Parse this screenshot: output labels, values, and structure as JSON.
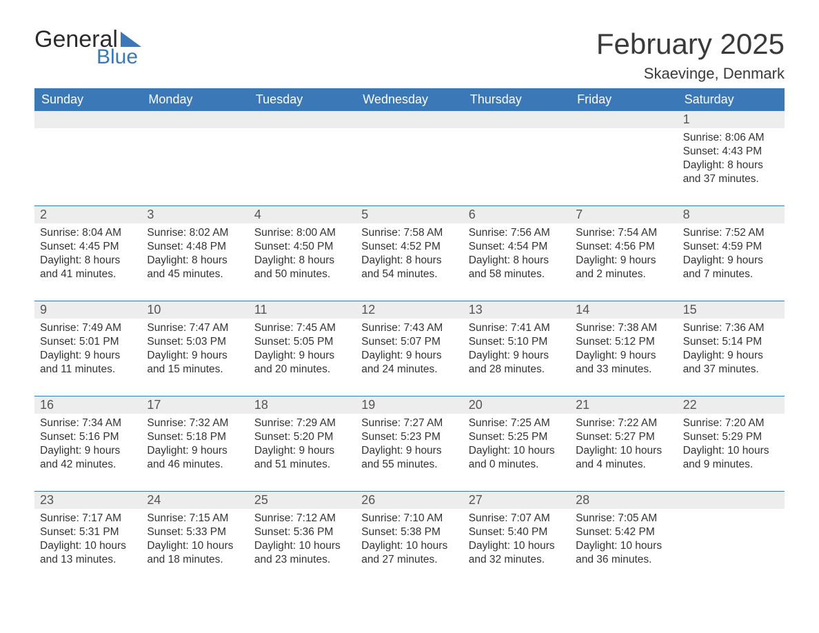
{
  "logo": {
    "text1": "General",
    "text2": "Blue",
    "brand_color": "#3a78b8"
  },
  "title": "February 2025",
  "location": "Skaevinge, Denmark",
  "colors": {
    "header_bg": "#3a78b8",
    "header_text": "#ffffff",
    "daynum_bg": "#ededed",
    "border": "#3a78b8",
    "body_text": "#333333",
    "background": "#ffffff"
  },
  "day_headers": [
    "Sunday",
    "Monday",
    "Tuesday",
    "Wednesday",
    "Thursday",
    "Friday",
    "Saturday"
  ],
  "layout": {
    "columns": 7,
    "rows": 5
  },
  "weeks": [
    [
      null,
      null,
      null,
      null,
      null,
      null,
      {
        "n": "1",
        "sr": "Sunrise: 8:06 AM",
        "ss": "Sunset: 4:43 PM",
        "d1": "Daylight: 8 hours",
        "d2": "and 37 minutes."
      }
    ],
    [
      {
        "n": "2",
        "sr": "Sunrise: 8:04 AM",
        "ss": "Sunset: 4:45 PM",
        "d1": "Daylight: 8 hours",
        "d2": "and 41 minutes."
      },
      {
        "n": "3",
        "sr": "Sunrise: 8:02 AM",
        "ss": "Sunset: 4:48 PM",
        "d1": "Daylight: 8 hours",
        "d2": "and 45 minutes."
      },
      {
        "n": "4",
        "sr": "Sunrise: 8:00 AM",
        "ss": "Sunset: 4:50 PM",
        "d1": "Daylight: 8 hours",
        "d2": "and 50 minutes."
      },
      {
        "n": "5",
        "sr": "Sunrise: 7:58 AM",
        "ss": "Sunset: 4:52 PM",
        "d1": "Daylight: 8 hours",
        "d2": "and 54 minutes."
      },
      {
        "n": "6",
        "sr": "Sunrise: 7:56 AM",
        "ss": "Sunset: 4:54 PM",
        "d1": "Daylight: 8 hours",
        "d2": "and 58 minutes."
      },
      {
        "n": "7",
        "sr": "Sunrise: 7:54 AM",
        "ss": "Sunset: 4:56 PM",
        "d1": "Daylight: 9 hours",
        "d2": "and 2 minutes."
      },
      {
        "n": "8",
        "sr": "Sunrise: 7:52 AM",
        "ss": "Sunset: 4:59 PM",
        "d1": "Daylight: 9 hours",
        "d2": "and 7 minutes."
      }
    ],
    [
      {
        "n": "9",
        "sr": "Sunrise: 7:49 AM",
        "ss": "Sunset: 5:01 PM",
        "d1": "Daylight: 9 hours",
        "d2": "and 11 minutes."
      },
      {
        "n": "10",
        "sr": "Sunrise: 7:47 AM",
        "ss": "Sunset: 5:03 PM",
        "d1": "Daylight: 9 hours",
        "d2": "and 15 minutes."
      },
      {
        "n": "11",
        "sr": "Sunrise: 7:45 AM",
        "ss": "Sunset: 5:05 PM",
        "d1": "Daylight: 9 hours",
        "d2": "and 20 minutes."
      },
      {
        "n": "12",
        "sr": "Sunrise: 7:43 AM",
        "ss": "Sunset: 5:07 PM",
        "d1": "Daylight: 9 hours",
        "d2": "and 24 minutes."
      },
      {
        "n": "13",
        "sr": "Sunrise: 7:41 AM",
        "ss": "Sunset: 5:10 PM",
        "d1": "Daylight: 9 hours",
        "d2": "and 28 minutes."
      },
      {
        "n": "14",
        "sr": "Sunrise: 7:38 AM",
        "ss": "Sunset: 5:12 PM",
        "d1": "Daylight: 9 hours",
        "d2": "and 33 minutes."
      },
      {
        "n": "15",
        "sr": "Sunrise: 7:36 AM",
        "ss": "Sunset: 5:14 PM",
        "d1": "Daylight: 9 hours",
        "d2": "and 37 minutes."
      }
    ],
    [
      {
        "n": "16",
        "sr": "Sunrise: 7:34 AM",
        "ss": "Sunset: 5:16 PM",
        "d1": "Daylight: 9 hours",
        "d2": "and 42 minutes."
      },
      {
        "n": "17",
        "sr": "Sunrise: 7:32 AM",
        "ss": "Sunset: 5:18 PM",
        "d1": "Daylight: 9 hours",
        "d2": "and 46 minutes."
      },
      {
        "n": "18",
        "sr": "Sunrise: 7:29 AM",
        "ss": "Sunset: 5:20 PM",
        "d1": "Daylight: 9 hours",
        "d2": "and 51 minutes."
      },
      {
        "n": "19",
        "sr": "Sunrise: 7:27 AM",
        "ss": "Sunset: 5:23 PM",
        "d1": "Daylight: 9 hours",
        "d2": "and 55 minutes."
      },
      {
        "n": "20",
        "sr": "Sunrise: 7:25 AM",
        "ss": "Sunset: 5:25 PM",
        "d1": "Daylight: 10 hours",
        "d2": "and 0 minutes."
      },
      {
        "n": "21",
        "sr": "Sunrise: 7:22 AM",
        "ss": "Sunset: 5:27 PM",
        "d1": "Daylight: 10 hours",
        "d2": "and 4 minutes."
      },
      {
        "n": "22",
        "sr": "Sunrise: 7:20 AM",
        "ss": "Sunset: 5:29 PM",
        "d1": "Daylight: 10 hours",
        "d2": "and 9 minutes."
      }
    ],
    [
      {
        "n": "23",
        "sr": "Sunrise: 7:17 AM",
        "ss": "Sunset: 5:31 PM",
        "d1": "Daylight: 10 hours",
        "d2": "and 13 minutes."
      },
      {
        "n": "24",
        "sr": "Sunrise: 7:15 AM",
        "ss": "Sunset: 5:33 PM",
        "d1": "Daylight: 10 hours",
        "d2": "and 18 minutes."
      },
      {
        "n": "25",
        "sr": "Sunrise: 7:12 AM",
        "ss": "Sunset: 5:36 PM",
        "d1": "Daylight: 10 hours",
        "d2": "and 23 minutes."
      },
      {
        "n": "26",
        "sr": "Sunrise: 7:10 AM",
        "ss": "Sunset: 5:38 PM",
        "d1": "Daylight: 10 hours",
        "d2": "and 27 minutes."
      },
      {
        "n": "27",
        "sr": "Sunrise: 7:07 AM",
        "ss": "Sunset: 5:40 PM",
        "d1": "Daylight: 10 hours",
        "d2": "and 32 minutes."
      },
      {
        "n": "28",
        "sr": "Sunrise: 7:05 AM",
        "ss": "Sunset: 5:42 PM",
        "d1": "Daylight: 10 hours",
        "d2": "and 36 minutes."
      },
      null
    ]
  ]
}
